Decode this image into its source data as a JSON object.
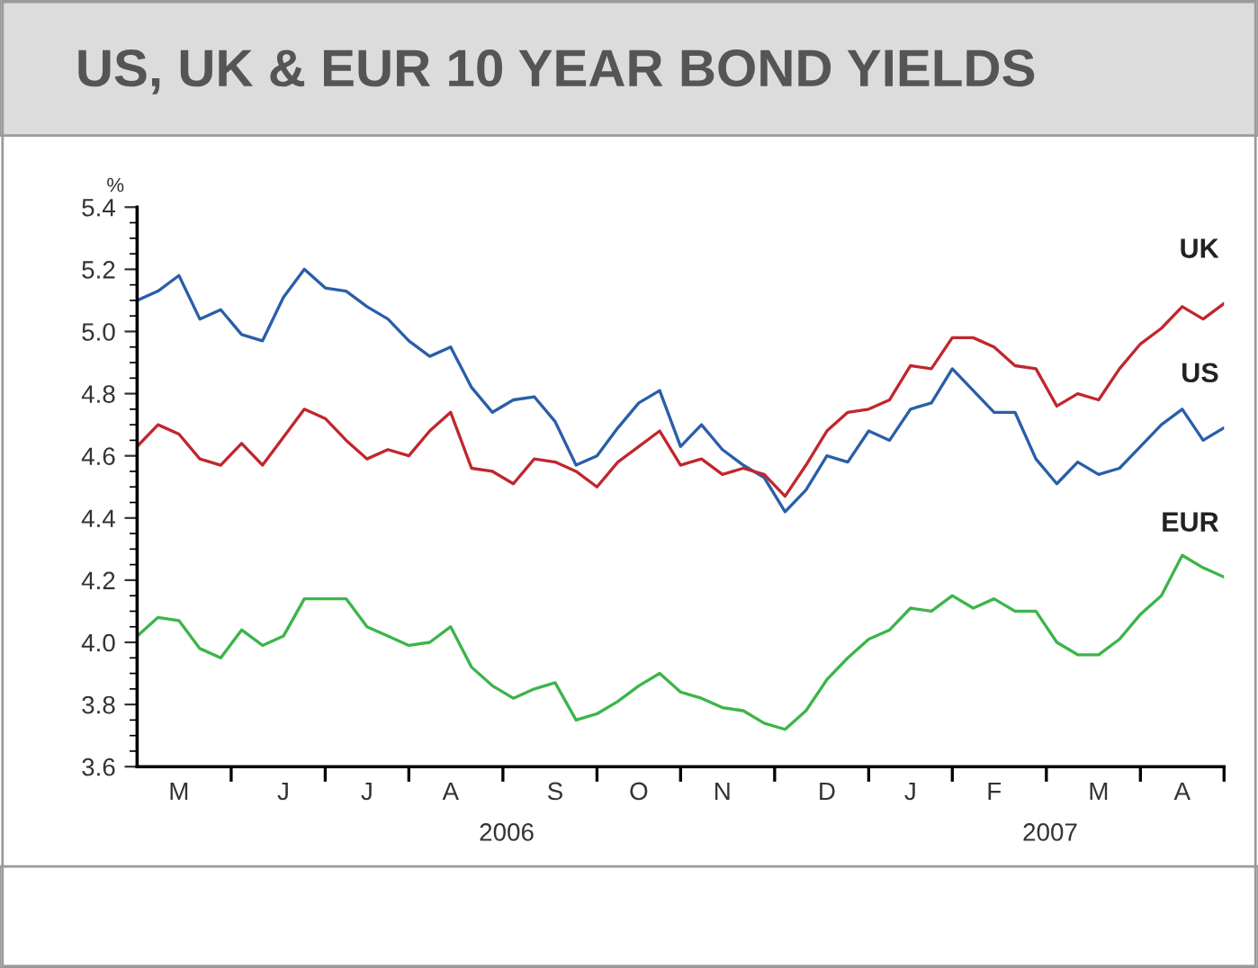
{
  "chart_data": {
    "type": "line",
    "title": "US, UK & EUR 10 YEAR BOND YIELDS",
    "ylabel": "%",
    "legend": false,
    "grid": false,
    "line_style": "solid",
    "marker": "none",
    "ylim": [
      3.6,
      5.4
    ],
    "yticks": [
      3.6,
      3.8,
      {
        "value": 4,
        "label": "4.0"
      },
      4.2,
      4.4,
      4.6,
      4.8,
      {
        "value": 5,
        "label": "5.0"
      },
      5.2,
      5.4
    ],
    "categories": [
      null,
      null,
      "M",
      null,
      null,
      null,
      null,
      "J",
      null,
      null,
      null,
      "J",
      null,
      null,
      null,
      "A",
      null,
      null,
      null,
      null,
      "S",
      null,
      null,
      null,
      "O",
      null,
      null,
      null,
      "N",
      null,
      null,
      null,
      null,
      "D",
      null,
      null,
      null,
      "J",
      null,
      null,
      null,
      "F",
      null,
      null,
      null,
      null,
      "M",
      null,
      null,
      null,
      "A",
      null,
      null
    ],
    "annotations": [
      "2006",
      "2007"
    ],
    "series": [
      {
        "name": "US",
        "color": "#2a5ea8",
        "values": [
          5.1,
          5.13,
          5.18,
          5.04,
          5.07,
          4.99,
          4.97,
          5.11,
          5.2,
          5.14,
          5.13,
          5.08,
          5.04,
          4.97,
          4.92,
          4.95,
          4.82,
          4.74,
          4.78,
          4.79,
          4.71,
          4.57,
          4.6,
          4.69,
          4.77,
          4.81,
          4.63,
          4.7,
          4.62,
          4.57,
          4.53,
          4.42,
          4.49,
          4.6,
          4.58,
          4.68,
          4.65,
          4.75,
          4.77,
          4.88,
          4.81,
          4.74,
          4.74,
          4.59,
          4.51,
          4.58,
          4.54,
          4.56,
          4.63,
          4.7,
          4.75,
          4.65,
          4.69
        ]
      },
      {
        "name": "UK",
        "color": "#c0272d",
        "values": [
          4.63,
          4.7,
          4.67,
          4.59,
          4.57,
          4.64,
          4.57,
          4.66,
          4.75,
          4.72,
          4.65,
          4.59,
          4.62,
          4.6,
          4.68,
          4.74,
          4.56,
          4.55,
          4.51,
          4.59,
          4.58,
          4.55,
          4.5,
          4.58,
          4.63,
          4.68,
          4.57,
          4.59,
          4.54,
          4.56,
          4.54,
          4.47,
          4.57,
          4.68,
          4.74,
          4.75,
          4.78,
          4.89,
          4.88,
          4.98,
          4.98,
          4.95,
          4.89,
          4.88,
          4.76,
          4.8,
          4.78,
          4.88,
          4.96,
          5.01,
          5.08,
          5.04,
          5.09
        ]
      },
      {
        "name": "EUR",
        "color": "#3cb54a",
        "values": [
          4.02,
          4.08,
          4.07,
          3.98,
          3.95,
          4.04,
          3.99,
          4.02,
          4.14,
          4.14,
          4.14,
          4.05,
          4.02,
          3.99,
          4.0,
          4.05,
          3.92,
          3.86,
          3.82,
          3.85,
          3.87,
          3.75,
          3.77,
          3.81,
          3.86,
          3.9,
          3.84,
          3.82,
          3.79,
          3.78,
          3.74,
          3.72,
          3.78,
          3.88,
          3.95,
          4.01,
          4.04,
          4.11,
          4.1,
          4.15,
          4.11,
          4.14,
          4.1,
          4.1,
          4.0,
          3.96,
          3.96,
          4.01,
          4.09,
          4.15,
          4.28,
          4.24,
          4.21
        ]
      }
    ]
  }
}
